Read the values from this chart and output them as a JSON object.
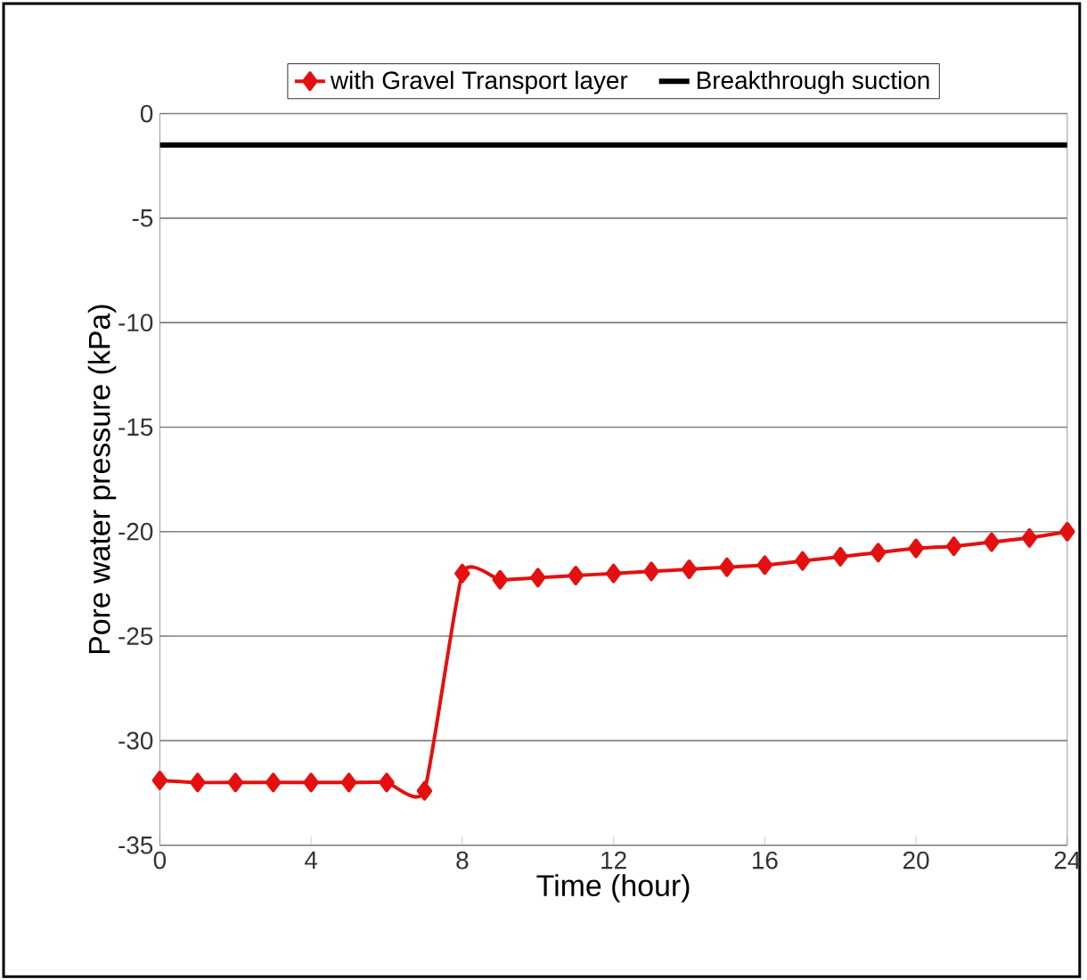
{
  "chart_data": {
    "type": "line",
    "xlabel": "Time (hour)",
    "ylabel": "Pore water pressure (kPa)",
    "xlim": [
      0,
      24
    ],
    "xticks": [
      0,
      4,
      8,
      12,
      16,
      20,
      24
    ],
    "ylim": [
      -35,
      0
    ],
    "yticks": [
      -35,
      -30,
      -25,
      -20,
      -15,
      -10,
      -5,
      0
    ],
    "grid": "y",
    "legend": "top",
    "series": [
      {
        "name": "with Gravel Transport layer",
        "color": "#e41010",
        "marker": "diamond",
        "x": [
          0,
          1,
          2,
          3,
          4,
          5,
          6,
          7,
          8,
          9,
          10,
          11,
          12,
          13,
          14,
          15,
          16,
          17,
          18,
          19,
          20,
          21,
          22,
          23,
          24
        ],
        "values": [
          -31.9,
          -32.0,
          -32.0,
          -32.0,
          -32.0,
          -32.0,
          -32.0,
          -32.4,
          -22.0,
          -22.3,
          -22.2,
          -22.1,
          -22.0,
          -21.9,
          -21.8,
          -21.7,
          -21.6,
          -21.4,
          -21.2,
          -21.0,
          -20.8,
          -20.7,
          -20.5,
          -20.3,
          -20.0
        ]
      },
      {
        "name": "Breakthrough suction",
        "color": "#000000",
        "marker": "none",
        "x": [
          0,
          24
        ],
        "values": [
          -1.5,
          -1.5
        ]
      }
    ]
  }
}
